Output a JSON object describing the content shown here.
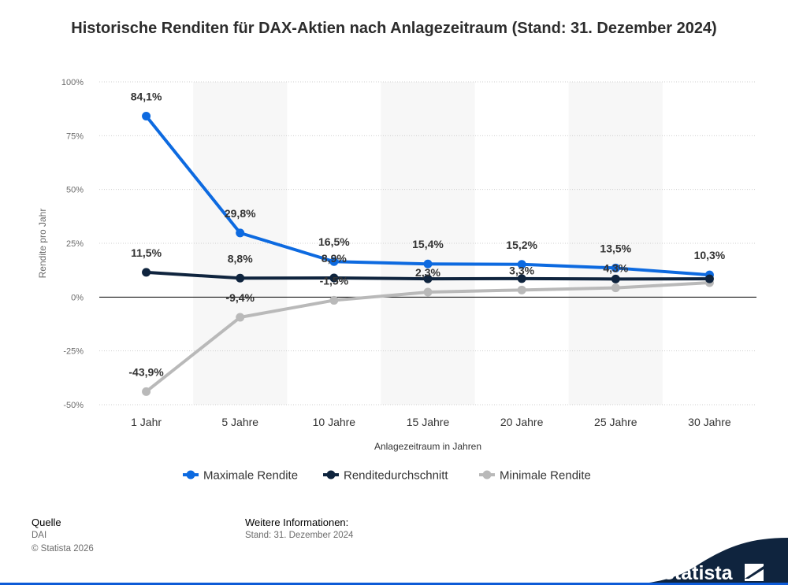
{
  "title": "Historische Renditen für DAX-Aktien nach Anlagezeitraum (Stand: 31. Dezember 2024)",
  "chart_data": {
    "type": "line",
    "title": "Historische Renditen für DAX-Aktien nach Anlagezeitraum (Stand: 31. Dezember 2024)",
    "xlabel": "Anlagezeitraum in Jahren",
    "ylabel": "Rendite pro Jahr",
    "categories": [
      "1 Jahr",
      "5 Jahre",
      "10 Jahre",
      "15 Jahre",
      "20 Jahre",
      "25 Jahre",
      "30 Jahre"
    ],
    "ylim": [
      -50,
      100
    ],
    "yticks": [
      100,
      75,
      50,
      25,
      0,
      -25,
      -50
    ],
    "ytick_labels": [
      "100%",
      "75%",
      "50%",
      "25%",
      "0%",
      "-25%",
      "-50%"
    ],
    "grid": true,
    "legend_position": "bottom-center",
    "series": [
      {
        "name": "Maximale Rendite",
        "color": "#0d6ae0",
        "values": [
          84.1,
          29.8,
          16.5,
          15.4,
          15.2,
          13.5,
          10.3
        ],
        "labels": [
          "84,1%",
          "29,8%",
          "16,5%",
          "15,4%",
          "15,2%",
          "13,5%",
          "10,3%"
        ]
      },
      {
        "name": "Renditedurchschnitt",
        "color": "#0f243e",
        "values": [
          11.5,
          8.8,
          8.9,
          8.5,
          8.6,
          8.4,
          8.5
        ],
        "labels": [
          "11,5%",
          "8,8%",
          "8,9%",
          "",
          "",
          "",
          ""
        ]
      },
      {
        "name": "Minimale Rendite",
        "color": "#b9b9b9",
        "values": [
          -43.9,
          -9.4,
          -1.5,
          2.3,
          3.3,
          4.3,
          6.7
        ],
        "labels": [
          "-43,9%",
          "-9,4%",
          "-1,5%",
          "2,3%",
          "3,3%",
          "4,3%",
          ""
        ]
      }
    ]
  },
  "footer": {
    "source_heading": "Quelle",
    "source": "DAI",
    "copyright": "© Statista 2026",
    "info_heading": "Weitere Informationen:",
    "info": "Stand: 31. Dezember 2024"
  },
  "brand": {
    "name": "statista",
    "color": "#0f243e",
    "accent": "#0d5bd7"
  }
}
